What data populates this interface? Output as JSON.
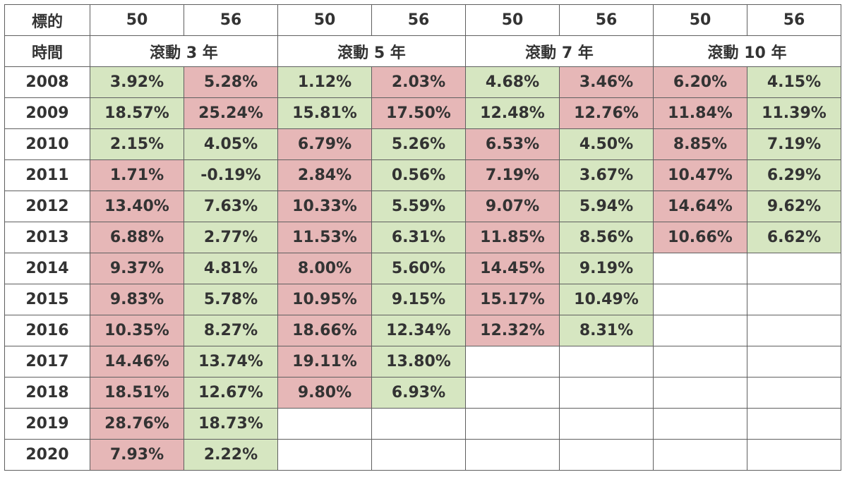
{
  "colors": {
    "green": "#d6e6c1",
    "red": "#e6b7b7",
    "border": "#5f5f5f",
    "text": "#333333"
  },
  "header": {
    "target_label": "標的",
    "targets": [
      "50",
      "56",
      "50",
      "56",
      "50",
      "56",
      "50",
      "56"
    ],
    "period_label": "時間",
    "periods": [
      "滾動 3 年",
      "滾動 5 年",
      "滾動 7 年",
      "滾動 10 年"
    ]
  },
  "rows": [
    {
      "year": "2008",
      "cells": [
        {
          "v": "3.92%",
          "c": "green"
        },
        {
          "v": "5.28%",
          "c": "red"
        },
        {
          "v": "1.12%",
          "c": "green"
        },
        {
          "v": "2.03%",
          "c": "red"
        },
        {
          "v": "4.68%",
          "c": "green"
        },
        {
          "v": "3.46%",
          "c": "red"
        },
        {
          "v": "6.20%",
          "c": "red"
        },
        {
          "v": "4.15%",
          "c": "green"
        }
      ]
    },
    {
      "year": "2009",
      "cells": [
        {
          "v": "18.57%",
          "c": "green"
        },
        {
          "v": "25.24%",
          "c": "red"
        },
        {
          "v": "15.81%",
          "c": "green"
        },
        {
          "v": "17.50%",
          "c": "red"
        },
        {
          "v": "12.48%",
          "c": "green"
        },
        {
          "v": "12.76%",
          "c": "red"
        },
        {
          "v": "11.84%",
          "c": "red"
        },
        {
          "v": "11.39%",
          "c": "green"
        }
      ]
    },
    {
      "year": "2010",
      "cells": [
        {
          "v": "2.15%",
          "c": "green"
        },
        {
          "v": "4.05%",
          "c": "green"
        },
        {
          "v": "6.79%",
          "c": "red"
        },
        {
          "v": "5.26%",
          "c": "green"
        },
        {
          "v": "6.53%",
          "c": "red"
        },
        {
          "v": "4.50%",
          "c": "green"
        },
        {
          "v": "8.85%",
          "c": "red"
        },
        {
          "v": "7.19%",
          "c": "green"
        }
      ]
    },
    {
      "year": "2011",
      "cells": [
        {
          "v": "1.71%",
          "c": "red"
        },
        {
          "v": "-0.19%",
          "c": "green"
        },
        {
          "v": "2.84%",
          "c": "red"
        },
        {
          "v": "0.56%",
          "c": "green"
        },
        {
          "v": "7.19%",
          "c": "red"
        },
        {
          "v": "3.67%",
          "c": "green"
        },
        {
          "v": "10.47%",
          "c": "red"
        },
        {
          "v": "6.29%",
          "c": "green"
        }
      ]
    },
    {
      "year": "2012",
      "cells": [
        {
          "v": "13.40%",
          "c": "red"
        },
        {
          "v": "7.63%",
          "c": "green"
        },
        {
          "v": "10.33%",
          "c": "red"
        },
        {
          "v": "5.59%",
          "c": "green"
        },
        {
          "v": "9.07%",
          "c": "red"
        },
        {
          "v": "5.94%",
          "c": "green"
        },
        {
          "v": "14.64%",
          "c": "red"
        },
        {
          "v": "9.62%",
          "c": "green"
        }
      ]
    },
    {
      "year": "2013",
      "cells": [
        {
          "v": "6.88%",
          "c": "red"
        },
        {
          "v": "2.77%",
          "c": "green"
        },
        {
          "v": "11.53%",
          "c": "red"
        },
        {
          "v": "6.31%",
          "c": "green"
        },
        {
          "v": "11.85%",
          "c": "red"
        },
        {
          "v": "8.56%",
          "c": "green"
        },
        {
          "v": "10.66%",
          "c": "red"
        },
        {
          "v": "6.62%",
          "c": "green"
        }
      ]
    },
    {
      "year": "2014",
      "cells": [
        {
          "v": "9.37%",
          "c": "red"
        },
        {
          "v": "4.81%",
          "c": "green"
        },
        {
          "v": "8.00%",
          "c": "red"
        },
        {
          "v": "5.60%",
          "c": "green"
        },
        {
          "v": "14.45%",
          "c": "red"
        },
        {
          "v": "9.19%",
          "c": "green"
        },
        {
          "v": "",
          "c": ""
        },
        {
          "v": "",
          "c": ""
        }
      ]
    },
    {
      "year": "2015",
      "cells": [
        {
          "v": "9.83%",
          "c": "red"
        },
        {
          "v": "5.78%",
          "c": "green"
        },
        {
          "v": "10.95%",
          "c": "red"
        },
        {
          "v": "9.15%",
          "c": "green"
        },
        {
          "v": "15.17%",
          "c": "red"
        },
        {
          "v": "10.49%",
          "c": "green"
        },
        {
          "v": "",
          "c": ""
        },
        {
          "v": "",
          "c": ""
        }
      ]
    },
    {
      "year": "2016",
      "cells": [
        {
          "v": "10.35%",
          "c": "red"
        },
        {
          "v": "8.27%",
          "c": "green"
        },
        {
          "v": "18.66%",
          "c": "red"
        },
        {
          "v": "12.34%",
          "c": "green"
        },
        {
          "v": "12.32%",
          "c": "red"
        },
        {
          "v": "8.31%",
          "c": "green"
        },
        {
          "v": "",
          "c": ""
        },
        {
          "v": "",
          "c": ""
        }
      ]
    },
    {
      "year": "2017",
      "cells": [
        {
          "v": "14.46%",
          "c": "red"
        },
        {
          "v": "13.74%",
          "c": "green"
        },
        {
          "v": "19.11%",
          "c": "red"
        },
        {
          "v": "13.80%",
          "c": "green"
        },
        {
          "v": "",
          "c": ""
        },
        {
          "v": "",
          "c": ""
        },
        {
          "v": "",
          "c": ""
        },
        {
          "v": "",
          "c": ""
        }
      ]
    },
    {
      "year": "2018",
      "cells": [
        {
          "v": "18.51%",
          "c": "red"
        },
        {
          "v": "12.67%",
          "c": "green"
        },
        {
          "v": "9.80%",
          "c": "red"
        },
        {
          "v": "6.93%",
          "c": "green"
        },
        {
          "v": "",
          "c": ""
        },
        {
          "v": "",
          "c": ""
        },
        {
          "v": "",
          "c": ""
        },
        {
          "v": "",
          "c": ""
        }
      ]
    },
    {
      "year": "2019",
      "cells": [
        {
          "v": "28.76%",
          "c": "red"
        },
        {
          "v": "18.73%",
          "c": "green"
        },
        {
          "v": "",
          "c": ""
        },
        {
          "v": "",
          "c": ""
        },
        {
          "v": "",
          "c": ""
        },
        {
          "v": "",
          "c": ""
        },
        {
          "v": "",
          "c": ""
        },
        {
          "v": "",
          "c": ""
        }
      ]
    },
    {
      "year": "2020",
      "cells": [
        {
          "v": "7.93%",
          "c": "red"
        },
        {
          "v": "2.22%",
          "c": "green"
        },
        {
          "v": "",
          "c": ""
        },
        {
          "v": "",
          "c": ""
        },
        {
          "v": "",
          "c": ""
        },
        {
          "v": "",
          "c": ""
        },
        {
          "v": "",
          "c": ""
        },
        {
          "v": "",
          "c": ""
        }
      ]
    }
  ]
}
